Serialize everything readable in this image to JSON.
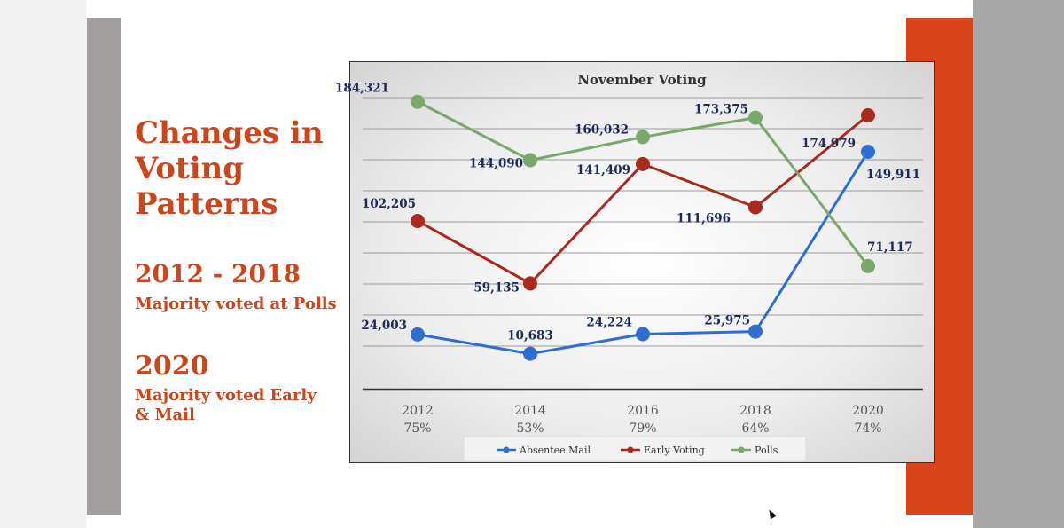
{
  "slide": {
    "heading": "Changes in Voting Patterns",
    "range_title": "2012 - 2018",
    "range_sub": "Majority voted at Polls",
    "year_title": "2020",
    "year_sub": "Majority voted Early & Mail"
  },
  "colors": {
    "accent": "#c8471c",
    "absentee": "#2f6ed1",
    "early": "#a92a1e",
    "polls": "#7aa86a",
    "label": "#1c2a5a"
  },
  "chart_data": {
    "type": "line",
    "title": "November Voting",
    "categories": [
      "2012",
      "2014",
      "2016",
      "2018",
      "2020"
    ],
    "category_sublabels": [
      "75%",
      "53%",
      "79%",
      "64%",
      "74%"
    ],
    "series": [
      {
        "name": "Absentee Mail",
        "values": [
          24003,
          10683,
          24224,
          25975,
          149911
        ],
        "labels": [
          "24,003",
          "10,683",
          "24,224",
          "25,975",
          "149,911"
        ]
      },
      {
        "name": "Early Voting",
        "values": [
          102205,
          59135,
          141409,
          111696,
          174979
        ],
        "labels": [
          "102,205",
          "59,135",
          "141,409",
          "111,696",
          "174,979"
        ]
      },
      {
        "name": "Polls",
        "values": [
          184321,
          144090,
          160032,
          173375,
          71117
        ],
        "labels": [
          "184,321",
          "144,090",
          "160,032",
          "173,375",
          "71,117"
        ]
      }
    ],
    "ylim": [
      -14000,
      208000
    ],
    "grid": true,
    "legend": "bottom"
  }
}
